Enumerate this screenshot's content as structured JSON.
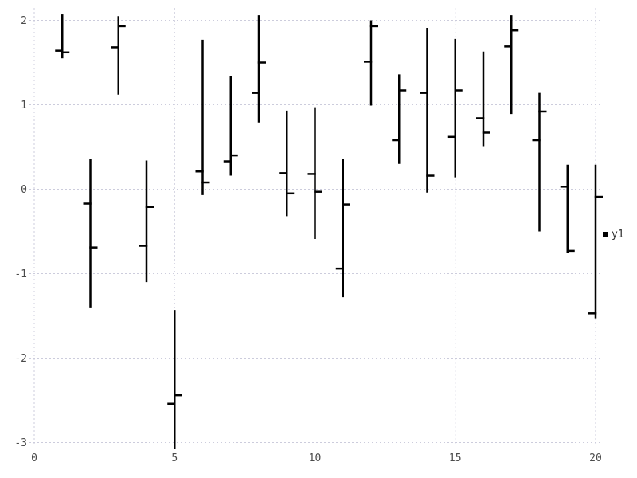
{
  "chart_data": {
    "type": "ohlc",
    "title": "",
    "xlabel": "",
    "ylabel": "",
    "grid": true,
    "legend_position": "right-middle",
    "x_ticks": [
      0,
      5,
      10,
      15,
      20
    ],
    "y_ticks": [
      2,
      1,
      0,
      -1,
      -2,
      -3
    ],
    "xlim": [
      -0.2,
      20.4
    ],
    "ylim": [
      -3.3,
      2.17
    ],
    "colors": {
      "bar": "#000000",
      "grid": "#ccccdc",
      "tick_label": "#4a4a4a",
      "legend_text": "#333333",
      "background": "#ffffff"
    },
    "series": [
      {
        "name": "y1",
        "points": [
          {
            "x": 1,
            "open": 1.64,
            "high": 2.07,
            "low": 1.55,
            "close": 1.62
          },
          {
            "x": 2,
            "open": -0.17,
            "high": 0.36,
            "low": -1.4,
            "close": -0.69
          },
          {
            "x": 3,
            "open": 1.68,
            "high": 2.05,
            "low": 1.12,
            "close": 1.93
          },
          {
            "x": 4,
            "open": -0.67,
            "high": 0.34,
            "low": -1.1,
            "close": -0.21
          },
          {
            "x": 5,
            "open": -2.54,
            "high": -1.43,
            "low": -3.08,
            "close": -2.44
          },
          {
            "x": 6,
            "open": 0.21,
            "high": 1.77,
            "low": -0.07,
            "close": 0.08
          },
          {
            "x": 7,
            "open": 0.33,
            "high": 1.34,
            "low": 0.16,
            "close": 0.4
          },
          {
            "x": 8,
            "open": 1.14,
            "high": 2.06,
            "low": 0.79,
            "close": 1.5
          },
          {
            "x": 9,
            "open": 0.19,
            "high": 0.93,
            "low": -0.32,
            "close": -0.05
          },
          {
            "x": 10,
            "open": 0.18,
            "high": 0.97,
            "low": -0.59,
            "close": -0.03
          },
          {
            "x": 11,
            "open": -0.94,
            "high": 0.36,
            "low": -1.28,
            "close": -0.18
          },
          {
            "x": 12,
            "open": 1.51,
            "high": 2.0,
            "low": 0.99,
            "close": 1.93
          },
          {
            "x": 13,
            "open": 0.58,
            "high": 1.36,
            "low": 0.3,
            "close": 1.17
          },
          {
            "x": 14,
            "open": 1.14,
            "high": 1.91,
            "low": -0.04,
            "close": 0.16
          },
          {
            "x": 15,
            "open": 0.62,
            "high": 1.78,
            "low": 0.14,
            "close": 1.17
          },
          {
            "x": 16,
            "open": 0.84,
            "high": 1.63,
            "low": 0.51,
            "close": 0.67
          },
          {
            "x": 17,
            "open": 1.69,
            "high": 2.06,
            "low": 0.89,
            "close": 1.88
          },
          {
            "x": 18,
            "open": 0.58,
            "high": 1.14,
            "low": -0.5,
            "close": 0.92
          },
          {
            "x": 19,
            "open": 0.03,
            "high": 0.29,
            "low": -0.76,
            "close": -0.73
          },
          {
            "x": 20,
            "open": -1.47,
            "high": 0.29,
            "low": -1.53,
            "close": -0.09
          }
        ]
      }
    ]
  }
}
